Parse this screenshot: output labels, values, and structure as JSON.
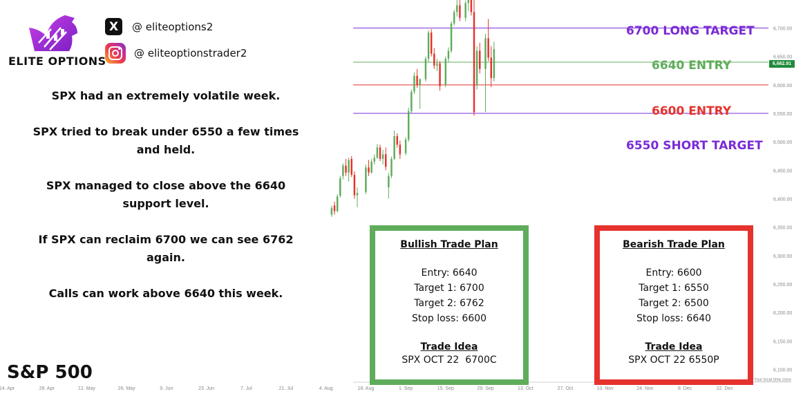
{
  "brand": {
    "name": "ELITE OPTIONS",
    "twitter_handle": "@ eliteoptions2",
    "instagram_handle": "@ eliteoptionstrader2",
    "logo_color": "#a52ad7"
  },
  "commentary": [
    "SPX had an extremely volatile week.",
    "SPX tried to break under 6550 a few times and held.",
    "SPX managed to close above the 6640 support level.",
    "If SPX can reclaim 6700 we can see 6762 again.",
    "Calls can work above 6640 this week."
  ],
  "index_name": "S&P 500",
  "levels": [
    {
      "label": "6700 LONG TARGET",
      "value": 6700,
      "color": "#7a2bd6"
    },
    {
      "label": "6640 ENTRY",
      "value": 6640,
      "color": "#5fac5b"
    },
    {
      "label": "6600 ENTRY",
      "value": 6600,
      "color": "#e5322c"
    },
    {
      "label": "6550 SHORT TARGET",
      "value": 6550,
      "color": "#7a2bd6"
    }
  ],
  "bullish_plan": {
    "title": "Bullish Trade Plan",
    "entry": "Entry: 6640",
    "target1": "Target 1: 6700",
    "target2": "Target 2: 6762",
    "stop": "Stop loss: 6600",
    "idea_title": "Trade Idea",
    "idea": "SPX OCT 22  6700C",
    "border_color": "#5fac5b"
  },
  "bearish_plan": {
    "title": "Bearish Trade Plan",
    "entry": "Entry: 6600",
    "target1": "Target 1: 6550",
    "target2": "Target 2: 6500",
    "stop": "Stop loss: 6640",
    "idea_title": "Trade Idea",
    "idea": "SPX OCT 22 6550P",
    "border_color": "#e5322c"
  },
  "chart_data": {
    "type": "candlestick",
    "title": "S&P 500",
    "ylim": [
      6075,
      6725
    ],
    "y_ticks": [
      6100,
      6150,
      6200,
      6250,
      6300,
      6350,
      6400,
      6450,
      6500,
      6550,
      6600,
      6650,
      6700
    ],
    "y_tick_labels": [
      "6,100.00",
      "6,150.00",
      "6,200.00",
      "6,250.00",
      "6,300.00",
      "6,350.00",
      "6,400.00",
      "6,450.00",
      "6,500.00",
      "6,550.00",
      "6,600.00",
      "6,650.00",
      "6,700.00"
    ],
    "x_tick_labels": [
      "14. Apr",
      "28. Apr",
      "12. May",
      "26. May",
      "9. Jun",
      "23. Jun",
      "7. Jul",
      "21. Jul",
      "4. Aug",
      "18. Aug",
      "1. Sep",
      "15. Sep",
      "29. Sep",
      "13. Oct",
      "27. Oct",
      "10. Nov",
      "24. Nov",
      "8. Dec",
      "22. Dec"
    ],
    "x_tick_positions": [
      0,
      14,
      28,
      42,
      56,
      70,
      84,
      98,
      112,
      126,
      140,
      154,
      168,
      182,
      196,
      210,
      224,
      238,
      252
    ],
    "last_price_label": "6,662.91",
    "timezone_label": "Your local time zone",
    "up_color": "#5fac5b",
    "down_color": "#e5322c",
    "candles": [
      {
        "x": 114,
        "open": 6372,
        "high": 6388,
        "low": 6368,
        "close": 6384
      },
      {
        "x": 115,
        "open": 6388,
        "high": 6395,
        "low": 6372,
        "close": 6378
      },
      {
        "x": 116,
        "open": 6378,
        "high": 6408,
        "low": 6376,
        "close": 6404
      },
      {
        "x": 117,
        "open": 6405,
        "high": 6440,
        "low": 6402,
        "close": 6436
      },
      {
        "x": 118,
        "open": 6440,
        "high": 6462,
        "low": 6434,
        "close": 6458
      },
      {
        "x": 119,
        "open": 6458,
        "high": 6470,
        "low": 6440,
        "close": 6446
      },
      {
        "x": 120,
        "open": 6446,
        "high": 6472,
        "low": 6430,
        "close": 6468
      },
      {
        "x": 121,
        "open": 6470,
        "high": 6475,
        "low": 6438,
        "close": 6442
      },
      {
        "x": 122,
        "open": 6442,
        "high": 6448,
        "low": 6400,
        "close": 6406
      },
      {
        "x": 123,
        "open": 6406,
        "high": 6420,
        "low": 6385,
        "close": 6410
      },
      {
        "x": 126,
        "open": 6412,
        "high": 6460,
        "low": 6408,
        "close": 6455
      },
      {
        "x": 127,
        "open": 6455,
        "high": 6468,
        "low": 6440,
        "close": 6446
      },
      {
        "x": 128,
        "open": 6446,
        "high": 6470,
        "low": 6444,
        "close": 6465
      },
      {
        "x": 129,
        "open": 6465,
        "high": 6478,
        "low": 6460,
        "close": 6472
      },
      {
        "x": 130,
        "open": 6472,
        "high": 6496,
        "low": 6470,
        "close": 6490
      },
      {
        "x": 131,
        "open": 6490,
        "high": 6495,
        "low": 6466,
        "close": 6470
      },
      {
        "x": 132,
        "open": 6470,
        "high": 6486,
        "low": 6460,
        "close": 6478
      },
      {
        "x": 133,
        "open": 6478,
        "high": 6490,
        "low": 6450,
        "close": 6456
      },
      {
        "x": 134,
        "open": 6420,
        "high": 6445,
        "low": 6400,
        "close": 6440
      },
      {
        "x": 135,
        "open": 6440,
        "high": 6474,
        "low": 6436,
        "close": 6470
      },
      {
        "x": 136,
        "open": 6470,
        "high": 6520,
        "low": 6468,
        "close": 6510
      },
      {
        "x": 137,
        "open": 6510,
        "high": 6515,
        "low": 6490,
        "close": 6495
      },
      {
        "x": 138,
        "open": 6495,
        "high": 6502,
        "low": 6470,
        "close": 6478
      },
      {
        "x": 140,
        "open": 6480,
        "high": 6508,
        "low": 6476,
        "close": 6504
      },
      {
        "x": 141,
        "open": 6504,
        "high": 6560,
        "low": 6500,
        "close": 6554
      },
      {
        "x": 142,
        "open": 6554,
        "high": 6592,
        "low": 6550,
        "close": 6588
      },
      {
        "x": 143,
        "open": 6588,
        "high": 6622,
        "low": 6584,
        "close": 6616
      },
      {
        "x": 144,
        "open": 6616,
        "high": 6628,
        "low": 6595,
        "close": 6600
      },
      {
        "x": 145,
        "open": 6600,
        "high": 6612,
        "low": 6558,
        "close": 6610
      },
      {
        "x": 147,
        "open": 6610,
        "high": 6650,
        "low": 6606,
        "close": 6646
      },
      {
        "x": 148,
        "open": 6646,
        "high": 6696,
        "low": 6640,
        "close": 6692
      },
      {
        "x": 149,
        "open": 6692,
        "high": 6698,
        "low": 6650,
        "close": 6655
      },
      {
        "x": 150,
        "open": 6655,
        "high": 6665,
        "low": 6628,
        "close": 6634
      },
      {
        "x": 151,
        "open": 6634,
        "high": 6646,
        "low": 6624,
        "close": 6638
      },
      {
        "x": 152,
        "open": 6638,
        "high": 6642,
        "low": 6590,
        "close": 6598
      },
      {
        "x": 154,
        "open": 6600,
        "high": 6650,
        "low": 6596,
        "close": 6646
      },
      {
        "x": 155,
        "open": 6646,
        "high": 6666,
        "low": 6640,
        "close": 6660
      },
      {
        "x": 156,
        "open": 6660,
        "high": 6712,
        "low": 6656,
        "close": 6708
      },
      {
        "x": 157,
        "open": 6708,
        "high": 6732,
        "low": 6704,
        "close": 6728
      },
      {
        "x": 158,
        "open": 6728,
        "high": 6750,
        "low": 6720,
        "close": 6740
      },
      {
        "x": 159,
        "open": 6740,
        "high": 6755,
        "low": 6712,
        "close": 6718
      },
      {
        "x": 161,
        "open": 6718,
        "high": 6748,
        "low": 6712,
        "close": 6744
      },
      {
        "x": 162,
        "open": 6744,
        "high": 6758,
        "low": 6730,
        "close": 6752
      },
      {
        "x": 163,
        "open": 6752,
        "high": 6762,
        "low": 6722,
        "close": 6728
      },
      {
        "x": 164,
        "open": 6728,
        "high": 6756,
        "low": 6546,
        "close": 6552
      },
      {
        "x": 165,
        "open": 6600,
        "high": 6668,
        "low": 6592,
        "close": 6660
      },
      {
        "x": 166,
        "open": 6660,
        "high": 6674,
        "low": 6620,
        "close": 6628
      },
      {
        "x": 168,
        "open": 6628,
        "high": 6690,
        "low": 6552,
        "close": 6682
      },
      {
        "x": 169,
        "open": 6682,
        "high": 6716,
        "low": 6642,
        "close": 6648
      },
      {
        "x": 170,
        "open": 6648,
        "high": 6668,
        "low": 6596,
        "close": 6612
      },
      {
        "x": 171,
        "open": 6612,
        "high": 6676,
        "low": 6606,
        "close": 6663
      }
    ]
  }
}
